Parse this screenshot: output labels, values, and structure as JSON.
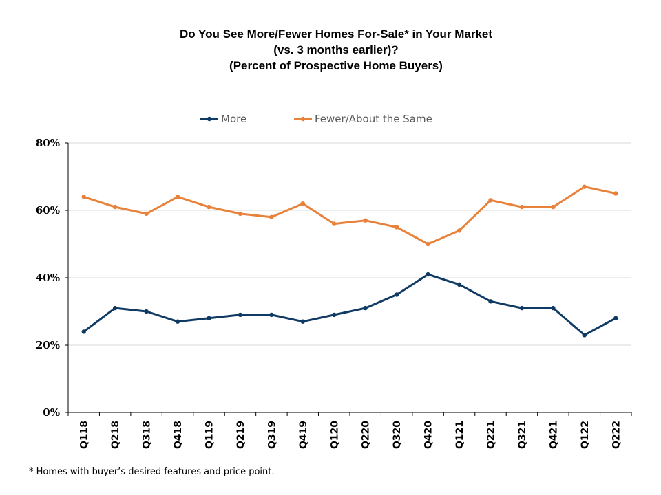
{
  "chart_data": {
    "type": "line",
    "title": [
      "Do You See More/Fewer Homes For-Sale* in Your Market",
      "(vs. 3 months earlier)?",
      "(Percent of Prospective Home Buyers)"
    ],
    "categories": [
      "Q118",
      "Q218",
      "Q318",
      "Q418",
      "Q119",
      "Q219",
      "Q319",
      "Q419",
      "Q120",
      "Q220",
      "Q320",
      "Q420",
      "Q121",
      "Q221",
      "Q321",
      "Q421",
      "Q122",
      "Q222"
    ],
    "series": [
      {
        "name": "More",
        "color": "#0f3a63",
        "values": [
          24,
          31,
          30,
          27,
          28,
          29,
          29,
          27,
          29,
          31,
          35,
          41,
          38,
          33,
          31,
          31,
          23,
          28
        ]
      },
      {
        "name": "Fewer/About the Same",
        "color": "#e8823a",
        "values": [
          64,
          61,
          59,
          64,
          61,
          59,
          58,
          62,
          56,
          57,
          55,
          50,
          54,
          63,
          61,
          61,
          67,
          65
        ]
      }
    ],
    "ylim": [
      0,
      80
    ],
    "yticks": [
      "0%",
      "20%",
      "40%",
      "60%",
      "80%"
    ],
    "ytick_values": [
      0,
      20,
      40,
      60,
      80
    ],
    "xlabel": "",
    "ylabel": "",
    "grid": true,
    "legend_position": "top-center"
  },
  "footnote": "* Homes with buyer’s desired features and price point."
}
